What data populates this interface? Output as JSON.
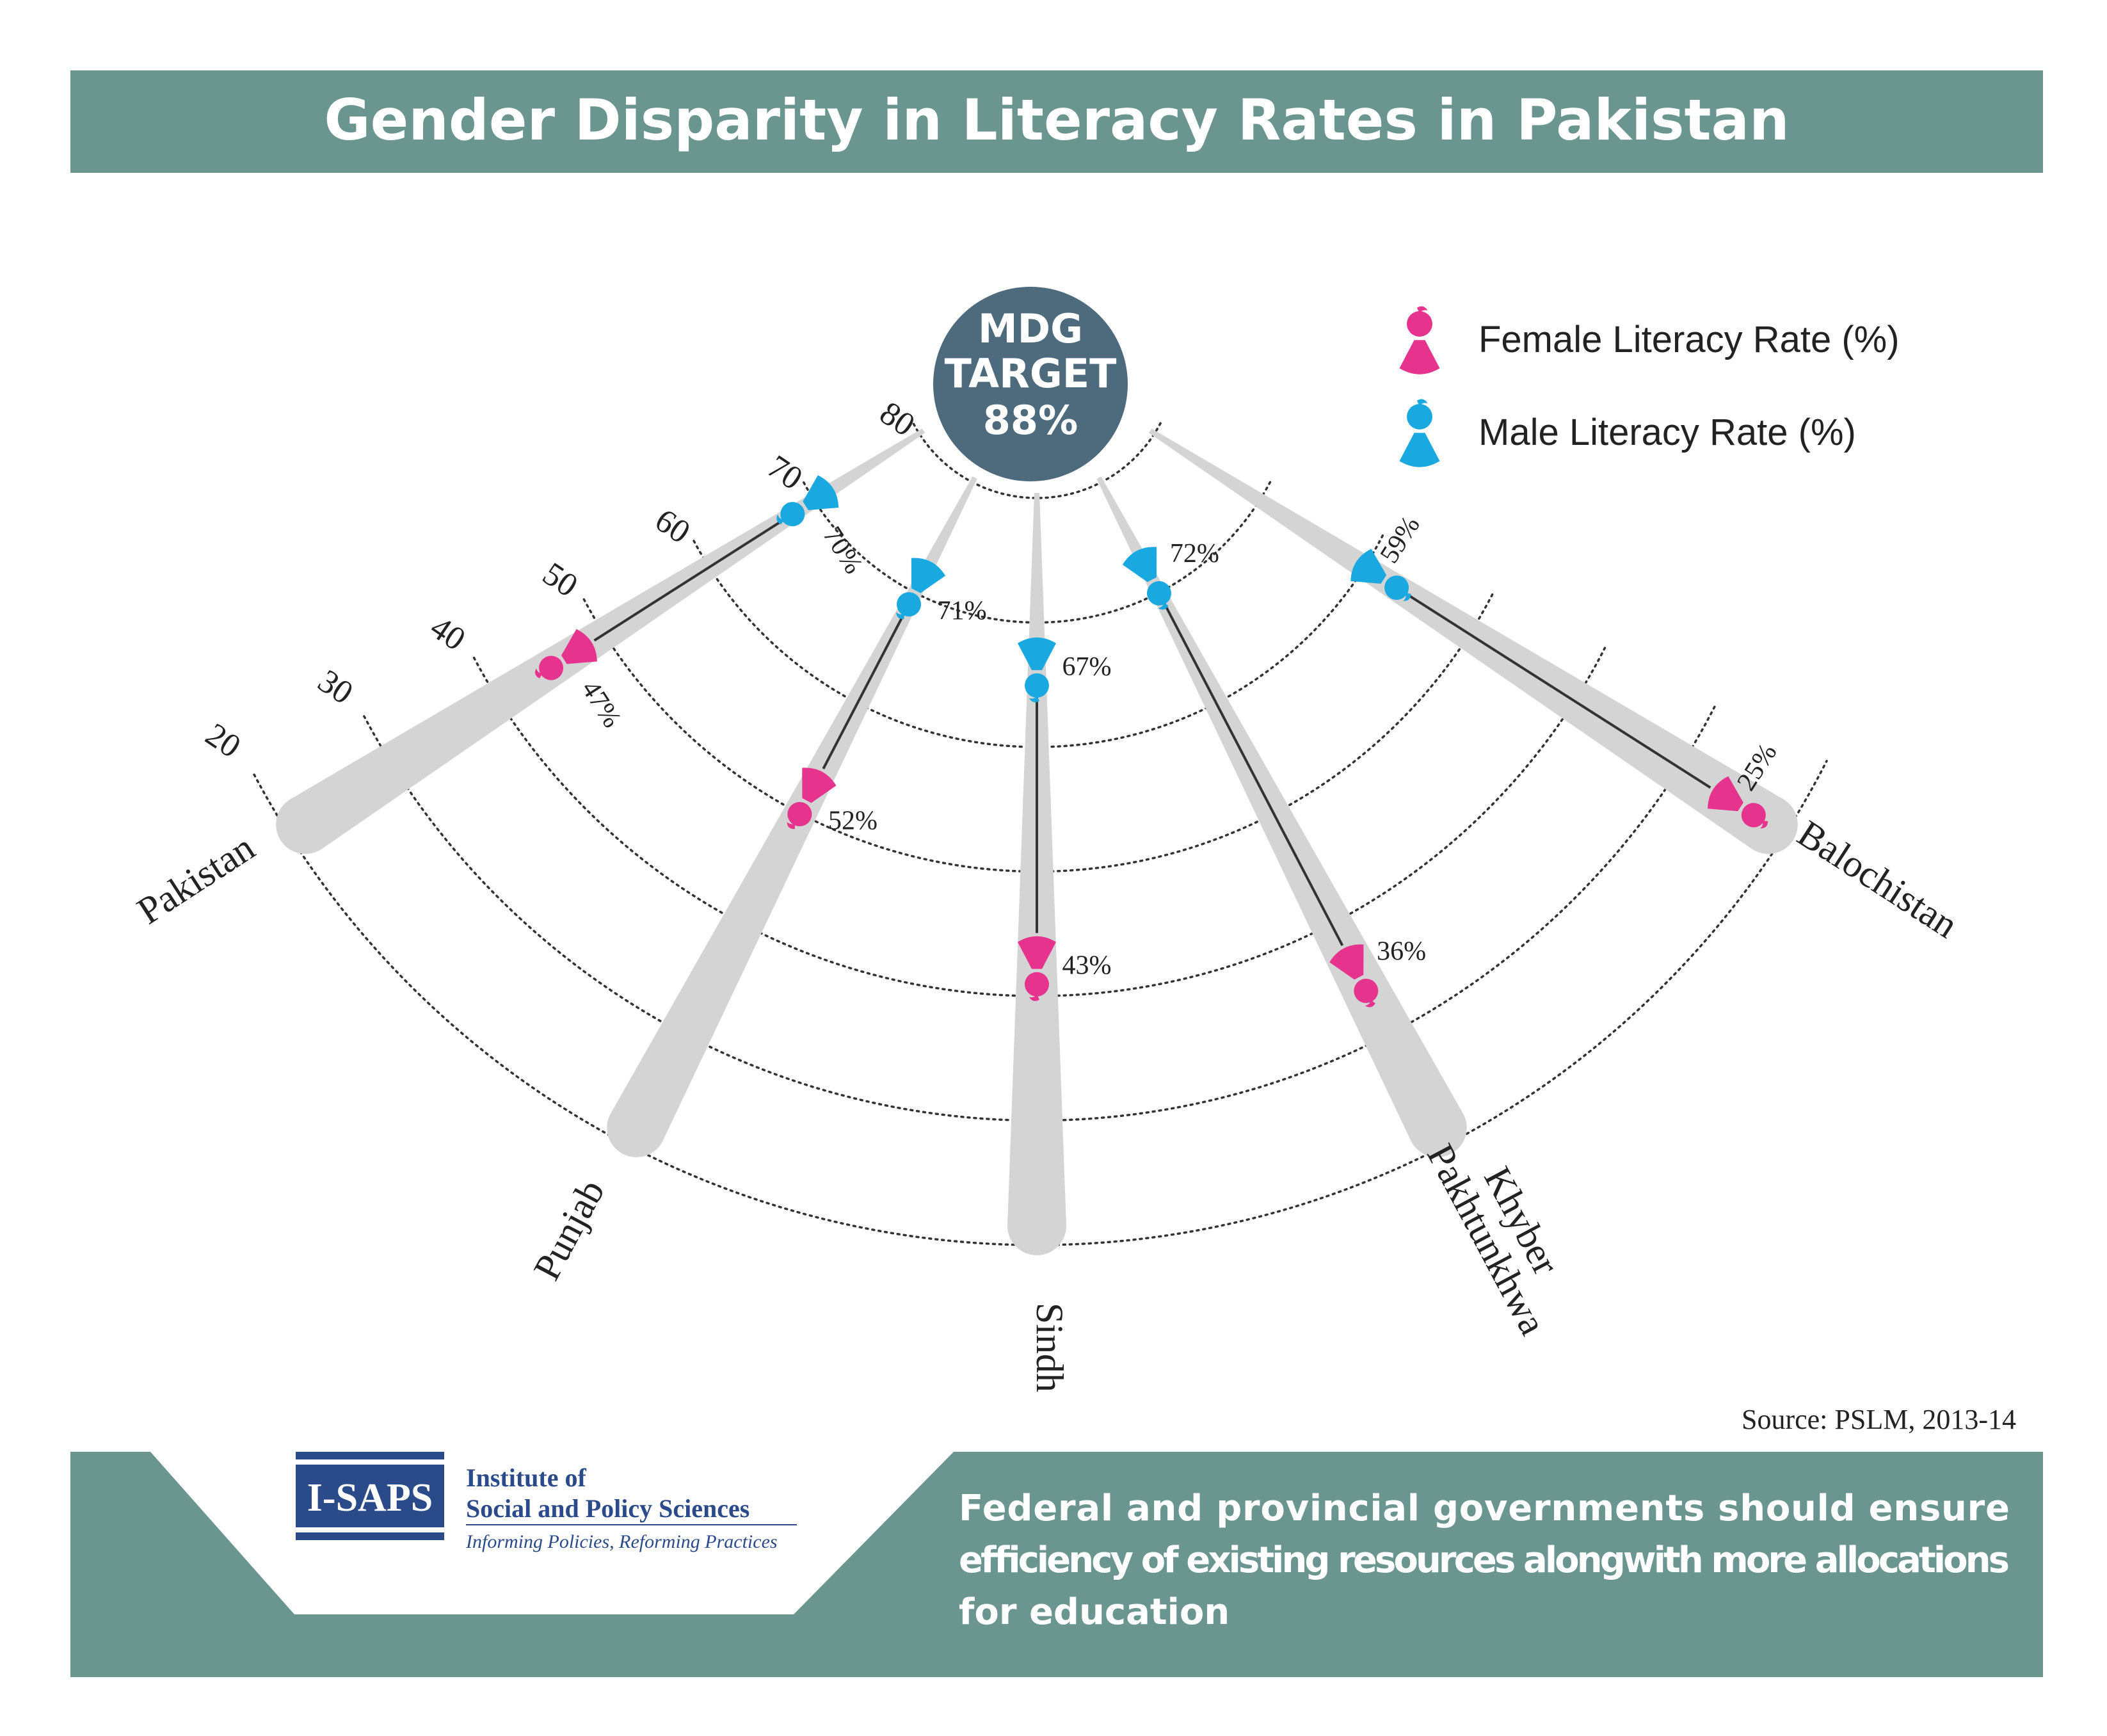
{
  "title": "Gender Disparity in Literacy Rates in Pakistan",
  "mdg": {
    "line1": "MDG",
    "line2": "TARGET",
    "line3": "88%"
  },
  "legend": {
    "female": "Female Literacy Rate (%)",
    "male": "Male Literacy Rate (%)"
  },
  "source": "Source: PSLM, 2013-14",
  "logo": {
    "box": "I-SAPS",
    "line1": "Institute of",
    "line2": "Social and Policy Sciences",
    "tagline": "Informing Policies, Reforming Practices"
  },
  "message": {
    "line1": "Federal and provincial governments should ensure",
    "line2": "efficiency of existing resources alongwith more allocations",
    "line3": "for education"
  },
  "colors": {
    "banner": "#6b9690",
    "mdg_circle": "#4e6a7d",
    "female": "#e6348e",
    "male": "#1aa8e0",
    "bar": "#d4d4d4",
    "connector": "#333333",
    "logo_blue": "#2a4a8a"
  },
  "chart_data": {
    "type": "radial-dumbbell",
    "title": "Gender Disparity in Literacy Rates in Pakistan",
    "target": 88,
    "ring_ticks": [
      20,
      30,
      40,
      50,
      60,
      70,
      80
    ],
    "series": [
      {
        "name": "Female Literacy Rate (%)",
        "key": "female"
      },
      {
        "name": "Male Literacy Rate (%)",
        "key": "male"
      }
    ],
    "regions": [
      {
        "name": "Pakistan",
        "female": 47,
        "male": 70,
        "female_label": "47%",
        "male_label": "70%"
      },
      {
        "name": "Punjab",
        "female": 52,
        "male": 71,
        "female_label": "52%",
        "male_label": "71%"
      },
      {
        "name": "Sindh",
        "female": 43,
        "male": 67,
        "female_label": "43%",
        "male_label": "67%"
      },
      {
        "name": "Khyber Pakhtunkhwa",
        "label_lines": [
          "Khyber",
          "Pakhtunkhwa"
        ],
        "female": 36,
        "male": 72,
        "female_label": "36%",
        "male_label": "72%"
      },
      {
        "name": "Balochistan",
        "female": 25,
        "male": 59,
        "female_label": "25%",
        "male_label": "59%"
      }
    ]
  }
}
